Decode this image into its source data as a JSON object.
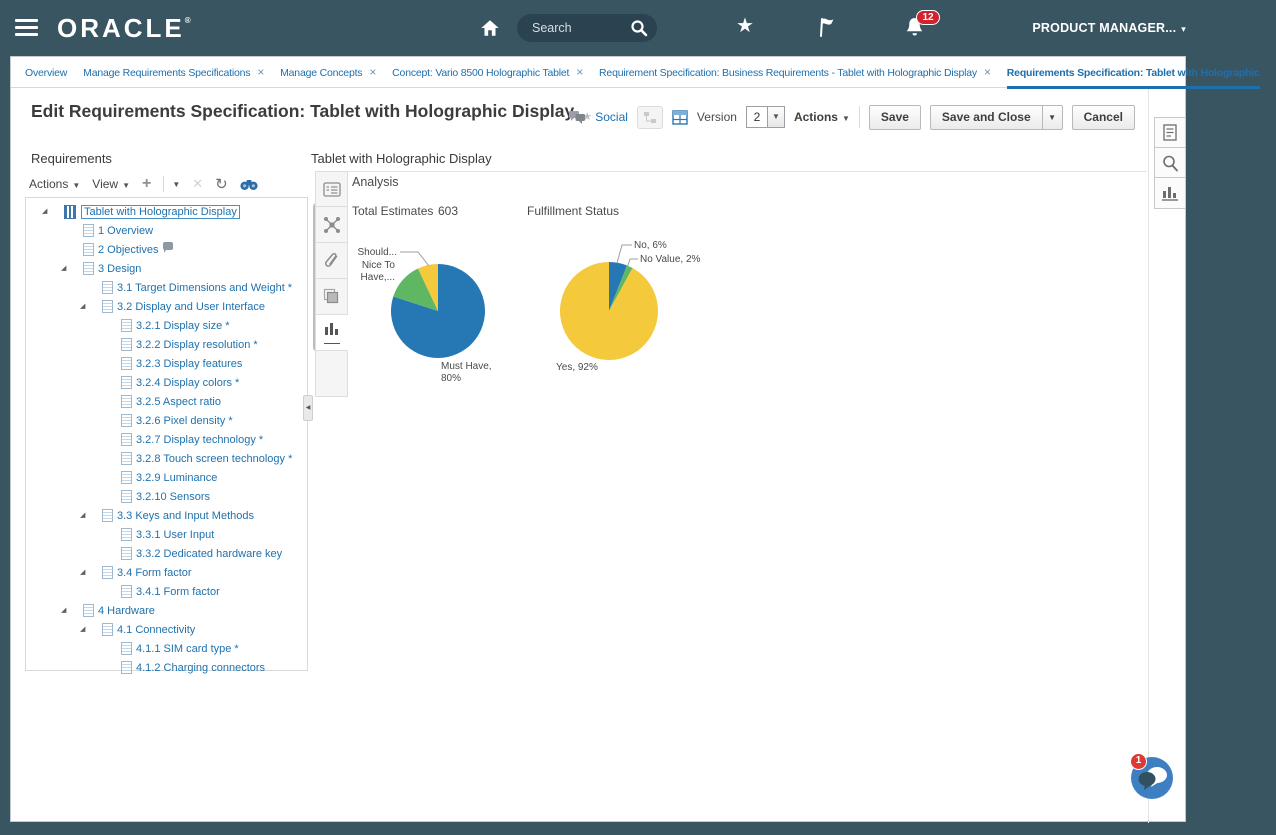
{
  "topbar": {
    "brand": "ORACLE",
    "brand_mark": "®",
    "search": {
      "placeholder": "Search"
    },
    "notification_count": "12",
    "user_menu_label": "PRODUCT MANAGER...",
    "user_menu_caret": "▾"
  },
  "tabs": [
    {
      "label": "Overview",
      "closable": false,
      "active": false
    },
    {
      "label": "Manage Requirements Specifications",
      "closable": true,
      "active": false
    },
    {
      "label": "Manage Concepts",
      "closable": true,
      "active": false
    },
    {
      "label": "Concept: Vario 8500 Holographic Tablet",
      "closable": true,
      "active": false
    },
    {
      "label": "Requirement Specification: Business Requirements - Tablet with Holographic Display",
      "closable": true,
      "active": false
    },
    {
      "label": "Requirements Specification: Tablet with Holographic",
      "closable": false,
      "active": true
    }
  ],
  "page_header": {
    "title": "Edit Requirements Specification: Tablet with Holographic Display",
    "social_label": "Social",
    "version_label": "Version",
    "version_value": "2",
    "actions_label": "Actions",
    "save_label": "Save",
    "save_and_close_label": "Save and Close",
    "cancel_label": "Cancel"
  },
  "requirements_panel": {
    "title": "Requirements",
    "toolbar": {
      "actions_label": "Actions",
      "view_label": "View"
    },
    "tree": [
      {
        "level": 0,
        "label": "Tablet with Holographic Display",
        "expander": true,
        "root": true,
        "selected": true
      },
      {
        "level": 1,
        "label": "1 Overview"
      },
      {
        "level": 1,
        "label": "2 Objectives",
        "comment": true
      },
      {
        "level": 1,
        "label": "3 Design",
        "expander": true
      },
      {
        "level": 2,
        "label": "3.1 Target Dimensions and Weight *"
      },
      {
        "level": 2,
        "label": "3.2 Display and User Interface",
        "expander": true
      },
      {
        "level": 3,
        "label": "3.2.1 Display size *"
      },
      {
        "level": 3,
        "label": "3.2.2 Display resolution *"
      },
      {
        "level": 3,
        "label": "3.2.3 Display features"
      },
      {
        "level": 3,
        "label": "3.2.4 Display colors *"
      },
      {
        "level": 3,
        "label": "3.2.5 Aspect ratio"
      },
      {
        "level": 3,
        "label": "3.2.6 Pixel density *"
      },
      {
        "level": 3,
        "label": "3.2.7 Display technology *"
      },
      {
        "level": 3,
        "label": "3.2.8 Touch screen technology *"
      },
      {
        "level": 3,
        "label": "3.2.9 Luminance"
      },
      {
        "level": 3,
        "label": "3.2.10 Sensors"
      },
      {
        "level": 2,
        "label": "3.3 Keys and Input Methods",
        "expander": true
      },
      {
        "level": 3,
        "label": "3.3.1 User Input"
      },
      {
        "level": 3,
        "label": "3.3.2 Dedicated hardware key"
      },
      {
        "level": 2,
        "label": "3.4 Form factor",
        "expander": true
      },
      {
        "level": 3,
        "label": "3.4.1 Form factor"
      },
      {
        "level": 1,
        "label": "4 Hardware",
        "expander": true
      },
      {
        "level": 2,
        "label": "4.1 Connectivity",
        "expander": true
      },
      {
        "level": 3,
        "label": "4.1.1 SIM card type *"
      },
      {
        "level": 3,
        "label": "4.1.2 Charging connectors"
      }
    ]
  },
  "detail_panel": {
    "title": "Tablet with Holographic Display",
    "section_title": "Analysis",
    "total_estimates_label": "Total Estimates",
    "total_estimates_value": "603",
    "fulfillment_status_label": "Fulfillment Status"
  },
  "chart_data": [
    {
      "type": "pie",
      "name": "requirement-priority",
      "slices": [
        {
          "label": "Must Have",
          "value": 80,
          "color": "#2678b4"
        },
        {
          "label": "Nice To Have",
          "value": 13,
          "color": "#5fb763"
        },
        {
          "label": "Should",
          "value": 7,
          "color": "#f5c93c"
        }
      ],
      "labels": {
        "should": "Should...",
        "nice": "Nice To Have,...",
        "must": "Must Have, 80%"
      }
    },
    {
      "type": "pie",
      "name": "fulfillment-status",
      "slices": [
        {
          "label": "No",
          "value": 6,
          "color": "#2678b4"
        },
        {
          "label": "No Value",
          "value": 2,
          "color": "#5fb763"
        },
        {
          "label": "Yes",
          "value": 92,
          "color": "#f5c93c"
        }
      ],
      "labels": {
        "no": "No, 6%",
        "no_value": "No Value, 2%",
        "yes": "Yes, 92%"
      }
    }
  ],
  "fab": {
    "badge": "1"
  }
}
